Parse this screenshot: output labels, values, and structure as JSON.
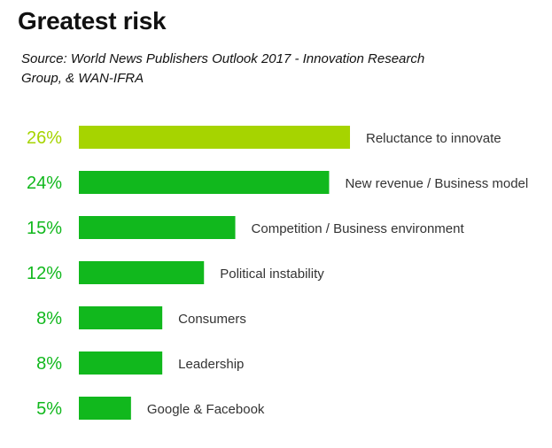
{
  "header": {
    "title": "Greatest risk",
    "source": "Source: World News Publishers Outlook 2017 - Innovation Research Group, & WAN-IFRA"
  },
  "colors": {
    "highlight": "#a6d400",
    "bar": "#11b81d",
    "label": "#333333"
  },
  "chart_data": {
    "type": "bar",
    "orientation": "horizontal",
    "title": "Greatest risk",
    "categories": [
      "Reluctance to innovate",
      "New revenue / Business model",
      "Competition / Business environment",
      "Political instability",
      "Consumers",
      "Leadership",
      "Google & Facebook"
    ],
    "values": [
      26,
      24,
      15,
      12,
      8,
      8,
      5
    ],
    "value_labels": [
      "26%",
      "24%",
      "15%",
      "12%",
      "8%",
      "8%",
      "5%"
    ],
    "unit": "%",
    "xlim": [
      0,
      26
    ],
    "grid": false,
    "legend": "none"
  }
}
